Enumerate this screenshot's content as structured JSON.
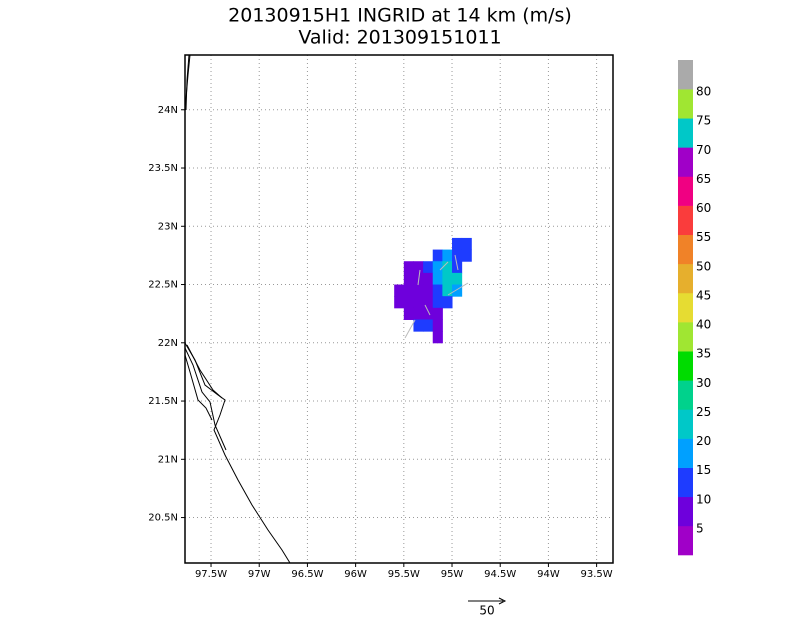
{
  "title": "20130915H1 INGRID at 14 km (m/s)",
  "subtitle": "Valid: 201309151011",
  "map": {
    "xlim": [
      -97.77,
      -93.33
    ],
    "ylim": [
      20.11,
      24.47
    ],
    "xticks": [
      {
        "value": -97.5,
        "label": "97.5W"
      },
      {
        "value": -97,
        "label": "97W"
      },
      {
        "value": -96.5,
        "label": "96.5W"
      },
      {
        "value": -96,
        "label": "96W"
      },
      {
        "value": -95.5,
        "label": "95.5W"
      },
      {
        "value": -95,
        "label": "95W"
      },
      {
        "value": -94.5,
        "label": "94.5W"
      },
      {
        "value": -94,
        "label": "94W"
      },
      {
        "value": -93.5,
        "label": "93.5W"
      }
    ],
    "yticks": [
      {
        "value": 20.5,
        "label": "20.5N"
      },
      {
        "value": 21,
        "label": "21N"
      },
      {
        "value": 21.5,
        "label": "21.5N"
      },
      {
        "value": 22,
        "label": "22N"
      },
      {
        "value": 22.5,
        "label": "22.5N"
      },
      {
        "value": 23,
        "label": "23N"
      },
      {
        "value": 23.5,
        "label": "23.5N"
      },
      {
        "value": 24,
        "label": "24N"
      }
    ],
    "cell_size": 0.1,
    "cells": [
      [
        -94.95,
        22.85,
        12
      ],
      [
        -94.85,
        22.85,
        12
      ],
      [
        -95.15,
        22.75,
        12
      ],
      [
        -95.05,
        22.75,
        18
      ],
      [
        -94.95,
        22.75,
        12
      ],
      [
        -94.85,
        22.75,
        12
      ],
      [
        -95.45,
        22.65,
        7
      ],
      [
        -95.35,
        22.65,
        7
      ],
      [
        -95.25,
        22.65,
        12
      ],
      [
        -95.15,
        22.65,
        18
      ],
      [
        -95.05,
        22.65,
        22
      ],
      [
        -94.95,
        22.65,
        14
      ],
      [
        -95.45,
        22.55,
        7
      ],
      [
        -95.35,
        22.55,
        7
      ],
      [
        -95.25,
        22.55,
        7
      ],
      [
        -95.15,
        22.55,
        18
      ],
      [
        -95.05,
        22.55,
        22
      ],
      [
        -94.95,
        22.55,
        20
      ],
      [
        -95.55,
        22.45,
        7
      ],
      [
        -95.45,
        22.45,
        7
      ],
      [
        -95.35,
        22.45,
        7
      ],
      [
        -95.25,
        22.45,
        7
      ],
      [
        -95.15,
        22.45,
        14
      ],
      [
        -95.05,
        22.45,
        20
      ],
      [
        -94.95,
        22.45,
        18
      ],
      [
        -95.55,
        22.35,
        7
      ],
      [
        -95.45,
        22.35,
        7
      ],
      [
        -95.35,
        22.35,
        7
      ],
      [
        -95.25,
        22.35,
        7
      ],
      [
        -95.15,
        22.35,
        12
      ],
      [
        -95.05,
        22.35,
        12
      ],
      [
        -95.45,
        22.25,
        7
      ],
      [
        -95.35,
        22.25,
        7
      ],
      [
        -95.25,
        22.25,
        7
      ],
      [
        -95.15,
        22.25,
        7
      ],
      [
        -95.35,
        22.15,
        12
      ],
      [
        -95.25,
        22.15,
        12
      ],
      [
        -95.15,
        22.15,
        7
      ],
      [
        -95.15,
        22.05,
        7
      ]
    ]
  },
  "colorbar": {
    "levels": [
      5,
      10,
      15,
      20,
      25,
      30,
      35,
      40,
      45,
      50,
      55,
      60,
      65,
      70,
      75,
      80
    ],
    "colors": [
      "#a000c8",
      "#6e00dc",
      "#1e3cff",
      "#00a0ff",
      "#00c8c8",
      "#00d28c",
      "#00dc00",
      "#a0e632",
      "#e6dc32",
      "#e6af2d",
      "#f08228",
      "#fa3c3c",
      "#f00082",
      "#a000c8",
      "#00c8c8",
      "#a0e632",
      "#aaaaaa"
    ]
  },
  "vector_key": 50
}
